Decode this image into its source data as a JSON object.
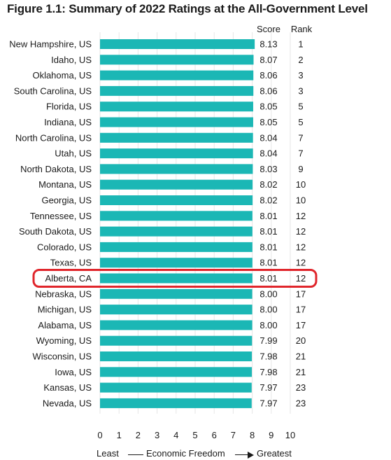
{
  "title": "Figure 1.1: Summary of 2022 Ratings at the All-Government Level",
  "column_headers": {
    "score": "Score",
    "rank": "Rank"
  },
  "highlight": {
    "label": "Alberta, CA",
    "color": "#e0252b"
  },
  "colors": {
    "bar": "#1bb7b5",
    "text": "#1a1a1a"
  },
  "footer": {
    "least": "Least",
    "middle": "Economic Freedom",
    "greatest": "Greatest"
  },
  "chart_data": {
    "type": "bar",
    "orientation": "horizontal",
    "xlim": [
      0,
      10
    ],
    "x_ticks": [
      "0",
      "1",
      "2",
      "3",
      "4",
      "5",
      "6",
      "7",
      "8",
      "9",
      "10"
    ],
    "grid": true,
    "categories": [
      "New Hampshire, US",
      "Idaho, US",
      "Oklahoma, US",
      "South Carolina, US",
      "Florida, US",
      "Indiana, US",
      "North Carolina, US",
      "Utah, US",
      "North Dakota, US",
      "Montana, US",
      "Georgia, US",
      "Tennessee, US",
      "South Dakota, US",
      "Colorado, US",
      "Texas, US",
      "Alberta, CA",
      "Nebraska, US",
      "Michigan, US",
      "Alabama, US",
      "Wyoming, US",
      "Wisconsin, US",
      "Iowa, US",
      "Kansas, US",
      "Nevada, US"
    ],
    "values": [
      8.13,
      8.07,
      8.06,
      8.06,
      8.05,
      8.05,
      8.04,
      8.04,
      8.03,
      8.02,
      8.02,
      8.01,
      8.01,
      8.01,
      8.01,
      8.01,
      8.0,
      8.0,
      8.0,
      7.99,
      7.98,
      7.98,
      7.97,
      7.97
    ],
    "score_labels": [
      "8.13",
      "8.07",
      "8.06",
      "8.06",
      "8.05",
      "8.05",
      "8.04",
      "8.04",
      "8.03",
      "8.02",
      "8.02",
      "8.01",
      "8.01",
      "8.01",
      "8.01",
      "8.01",
      "8.00",
      "8.00",
      "8.00",
      "7.99",
      "7.98",
      "7.98",
      "7.97",
      "7.97"
    ],
    "ranks": [
      "1",
      "2",
      "3",
      "3",
      "5",
      "5",
      "7",
      "7",
      "9",
      "10",
      "10",
      "12",
      "12",
      "12",
      "12",
      "12",
      "17",
      "17",
      "17",
      "20",
      "21",
      "21",
      "23",
      "23"
    ]
  }
}
